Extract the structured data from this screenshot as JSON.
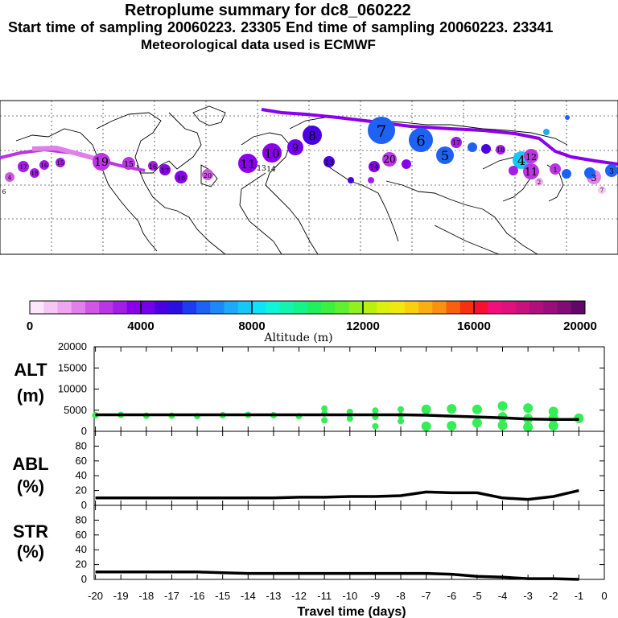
{
  "header": {
    "title": "Retroplume summary for dc8_060222",
    "sampling": "Start time of sampling 20060223. 23305     End time of sampling 20060223. 23341",
    "met": "Meteorological data used is ECMWF"
  },
  "colorbar": {
    "label": "Altitude (m)",
    "ticks": [
      "0",
      "4000",
      "8000",
      "12000",
      "16000",
      "20000"
    ],
    "colors": [
      "#fde6fd",
      "#f6c6f6",
      "#eea6f0",
      "#e080ea",
      "#cf57e3",
      "#b936e2",
      "#a01ee6",
      "#8a00ea",
      "#7400ec",
      "#4a00e0",
      "#2a10e0",
      "#1c3cf0",
      "#1e62f4",
      "#1f88f8",
      "#1eaaf8",
      "#14c8f8",
      "#10e4f4",
      "#10f4d8",
      "#14f4b0",
      "#14f488",
      "#20f060",
      "#3cf040",
      "#60f030",
      "#90f020",
      "#b8f010",
      "#dcf010",
      "#f0e810",
      "#f8d010",
      "#f8b010",
      "#f89010",
      "#f86010",
      "#f83010",
      "#f81030",
      "#f0107c",
      "#e0107e",
      "#c8107e",
      "#b0107e",
      "#9a0e7c",
      "#800c74",
      "#60086a"
    ]
  },
  "map_labels": [
    "7",
    "6",
    "5",
    "4",
    "8",
    "9",
    "10",
    "11",
    "12",
    "13",
    "14",
    "15",
    "16",
    "17",
    "18",
    "19",
    "20",
    "1",
    "2",
    "3"
  ],
  "chart_data": [
    {
      "type": "line",
      "panel": "ALT",
      "ylabel": "ALT\n(m)",
      "ylabel_lines": [
        "ALT",
        "(m)"
      ],
      "ylim": [
        0,
        20000
      ],
      "yticks": [
        "0",
        "5000",
        "10000",
        "15000",
        "20000"
      ],
      "x": [
        -20,
        -19,
        -18,
        -17,
        -16,
        -15,
        -14,
        -13,
        -12,
        -11,
        -10,
        -9,
        -8,
        -7,
        -6,
        -5,
        -4,
        -3,
        -2,
        -1
      ],
      "values": [
        3900,
        3900,
        3900,
        3900,
        3900,
        3900,
        3900,
        3900,
        3900,
        3900,
        3900,
        3900,
        3900,
        3800,
        3600,
        3400,
        3200,
        2900,
        2800,
        2800
      ]
    },
    {
      "type": "line",
      "panel": "ABL",
      "ylabel_lines": [
        "ABL",
        "(%)"
      ],
      "ylim": [
        0,
        100
      ],
      "yticks": [
        "0",
        "20",
        "40",
        "60",
        "80"
      ],
      "x": [
        -20,
        -19,
        -18,
        -17,
        -16,
        -15,
        -14,
        -13,
        -12,
        -11,
        -10,
        -9,
        -8,
        -7,
        -6,
        -5,
        -4,
        -3,
        -2,
        -1
      ],
      "values": [
        10,
        10,
        10,
        10,
        10,
        10,
        10,
        10,
        11,
        11,
        12,
        12,
        13,
        18,
        17,
        17,
        10,
        8,
        12,
        20
      ]
    },
    {
      "type": "line",
      "panel": "STR",
      "ylabel_lines": [
        "STR",
        "(%)"
      ],
      "ylim": [
        0,
        100
      ],
      "yticks": [
        "0",
        "20",
        "40",
        "60",
        "80"
      ],
      "x": [
        -20,
        -19,
        -18,
        -17,
        -16,
        -15,
        -14,
        -13,
        -12,
        -11,
        -10,
        -9,
        -8,
        -7,
        -6,
        -5,
        -4,
        -3,
        -2,
        -1
      ],
      "values": [
        10,
        10,
        10,
        10,
        10,
        9,
        8,
        8,
        8,
        8,
        8,
        8,
        8,
        8,
        7,
        4,
        3,
        1,
        1,
        0
      ]
    }
  ],
  "alt_points": {
    "x": [
      -20,
      -19,
      -18,
      -17,
      -16,
      -15,
      -14,
      -13,
      -12,
      -11,
      -11,
      -11,
      -10,
      -10,
      -9,
      -9,
      -9,
      -8,
      -8,
      -8,
      -7,
      -7,
      -6,
      -6,
      -5,
      -5,
      -4,
      -4,
      -4,
      -3,
      -3,
      -3,
      -2,
      -2,
      -2,
      -1
    ],
    "values": [
      3800,
      3900,
      3700,
      3700,
      3600,
      3800,
      3900,
      3800,
      3600,
      2600,
      4200,
      5400,
      3000,
      4600,
      1200,
      3400,
      4900,
      2400,
      3800,
      5200,
      1200,
      5200,
      1300,
      5300,
      2000,
      5200,
      1400,
      3400,
      6000,
      1000,
      3000,
      5500,
      1300,
      3100,
      4700,
      3100
    ]
  },
  "xaxis": {
    "label": "Travel time (days)",
    "ticks": [
      "-20",
      "-19",
      "-18",
      "-17",
      "-16",
      "-15",
      "-14",
      "-13",
      "-12",
      "-11",
      "-10",
      "-9",
      "-8",
      "-7",
      "-6",
      "-5",
      "-4",
      "-3",
      "-2",
      "-1",
      "0"
    ]
  },
  "colors": {
    "line": "#000000",
    "point": "#33ee55",
    "trajectory": "#8a00ea"
  }
}
